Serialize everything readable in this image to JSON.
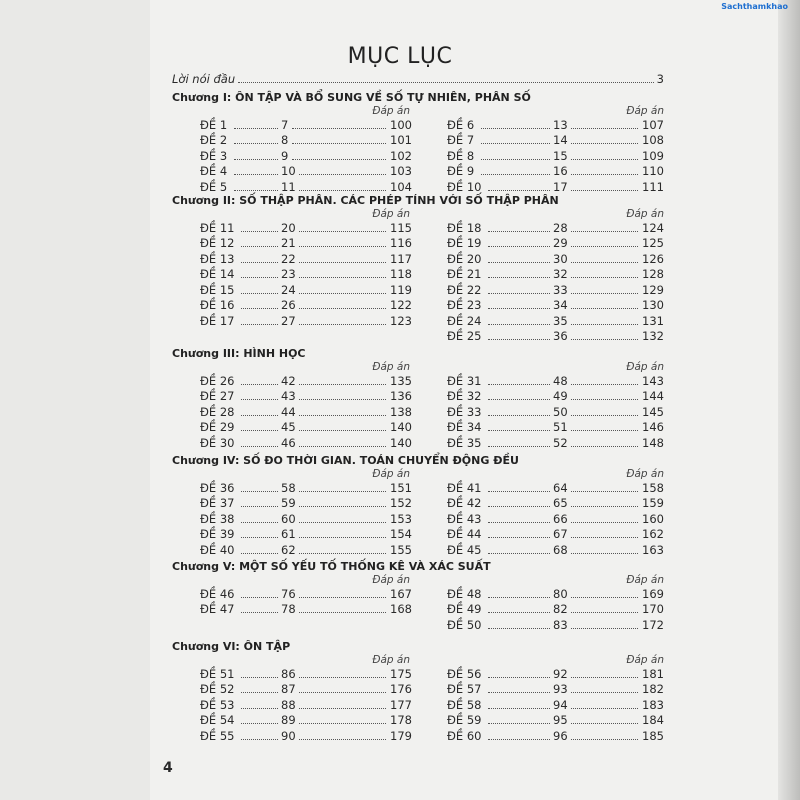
{
  "watermark": "Sachthamkhao",
  "title": "MỤC LỤC",
  "preface": {
    "label": "Lời nói đầu",
    "page": "3"
  },
  "answer_header": "Đáp án",
  "chapters": [
    {
      "title": "Chương I: ÔN TẬP VÀ BỔ SUNG VỀ SỐ TỰ NHIÊN, PHÂN SỐ",
      "left": [
        [
          "ĐỀ 1",
          "7",
          "100"
        ],
        [
          "ĐỀ 2",
          "8",
          "101"
        ],
        [
          "ĐỀ 3",
          "9",
          "102"
        ],
        [
          "ĐỀ 4",
          "10",
          "103"
        ],
        [
          "ĐỀ 5",
          "11",
          "104"
        ]
      ],
      "right": [
        [
          "ĐỀ 6",
          "13",
          "107"
        ],
        [
          "ĐỀ 7",
          "14",
          "108"
        ],
        [
          "ĐỀ 8",
          "15",
          "109"
        ],
        [
          "ĐỀ 9",
          "16",
          "110"
        ],
        [
          "ĐỀ 10",
          "17",
          "111"
        ]
      ]
    },
    {
      "title": "Chương II: SỐ THẬP PHÂN. CÁC PHÉP TÍNH VỚI SỐ THẬP PHÂN",
      "left": [
        [
          "ĐỀ 11",
          "20",
          "115"
        ],
        [
          "ĐỀ 12",
          "21",
          "116"
        ],
        [
          "ĐỀ 13",
          "22",
          "117"
        ],
        [
          "ĐỀ 14",
          "23",
          "118"
        ],
        [
          "ĐỀ 15",
          "24",
          "119"
        ],
        [
          "ĐỀ 16",
          "26",
          "122"
        ],
        [
          "ĐỀ 17",
          "27",
          "123"
        ]
      ],
      "right": [
        [
          "ĐỀ 18",
          "28",
          "124"
        ],
        [
          "ĐỀ 19",
          "29",
          "125"
        ],
        [
          "ĐỀ 20",
          "30",
          "126"
        ],
        [
          "ĐỀ 21",
          "32",
          "128"
        ],
        [
          "ĐỀ 22",
          "33",
          "129"
        ],
        [
          "ĐỀ 23",
          "34",
          "130"
        ],
        [
          "ĐỀ 24",
          "35",
          "131"
        ],
        [
          "ĐỀ 25",
          "36",
          "132"
        ]
      ]
    },
    {
      "title": "Chương III: HÌNH HỌC",
      "left": [
        [
          "ĐỀ 26",
          "42",
          "135"
        ],
        [
          "ĐỀ 27",
          "43",
          "136"
        ],
        [
          "ĐỀ 28",
          "44",
          "138"
        ],
        [
          "ĐỀ 29",
          "45",
          "140"
        ],
        [
          "ĐỀ 30",
          "46",
          "140"
        ]
      ],
      "right": [
        [
          "ĐỀ 31",
          "48",
          "143"
        ],
        [
          "ĐỀ 32",
          "49",
          "144"
        ],
        [
          "ĐỀ 33",
          "50",
          "145"
        ],
        [
          "ĐỀ 34",
          "51",
          "146"
        ],
        [
          "ĐỀ 35",
          "52",
          "148"
        ]
      ]
    },
    {
      "title": "Chương IV: SỐ ĐO THỜI GIAN. TOÁN CHUYỂN ĐỘNG ĐỀU",
      "left": [
        [
          "ĐỀ 36",
          "58",
          "151"
        ],
        [
          "ĐỀ 37",
          "59",
          "152"
        ],
        [
          "ĐỀ 38",
          "60",
          "153"
        ],
        [
          "ĐỀ 39",
          "61",
          "154"
        ],
        [
          "ĐỀ 40",
          "62",
          "155"
        ]
      ],
      "right": [
        [
          "ĐỀ 41",
          "64",
          "158"
        ],
        [
          "ĐỀ 42",
          "65",
          "159"
        ],
        [
          "ĐỀ 43",
          "66",
          "160"
        ],
        [
          "ĐỀ 44",
          "67",
          "162"
        ],
        [
          "ĐỀ 45",
          "68",
          "163"
        ]
      ]
    },
    {
      "title": "Chương V: MỘT SỐ YẾU TỐ THỐNG KÊ VÀ XÁC SUẤT",
      "left": [
        [
          "ĐỀ 46",
          "76",
          "167"
        ],
        [
          "ĐỀ 47",
          "78",
          "168"
        ]
      ],
      "right": [
        [
          "ĐỀ 48",
          "80",
          "169"
        ],
        [
          "ĐỀ 49",
          "82",
          "170"
        ],
        [
          "ĐỀ 50",
          "83",
          "172"
        ]
      ]
    },
    {
      "title": "Chương VI: ÔN TẬP",
      "left": [
        [
          "ĐỀ 51",
          "86",
          "175"
        ],
        [
          "ĐỀ 52",
          "87",
          "176"
        ],
        [
          "ĐỀ 53",
          "88",
          "177"
        ],
        [
          "ĐỀ 54",
          "89",
          "178"
        ],
        [
          "ĐỀ 55",
          "90",
          "179"
        ]
      ],
      "right": [
        [
          "ĐỀ 56",
          "92",
          "181"
        ],
        [
          "ĐỀ 57",
          "93",
          "182"
        ],
        [
          "ĐỀ 58",
          "94",
          "183"
        ],
        [
          "ĐỀ 59",
          "95",
          "184"
        ],
        [
          "ĐỀ 60",
          "96",
          "185"
        ]
      ]
    }
  ],
  "page_number": "4"
}
